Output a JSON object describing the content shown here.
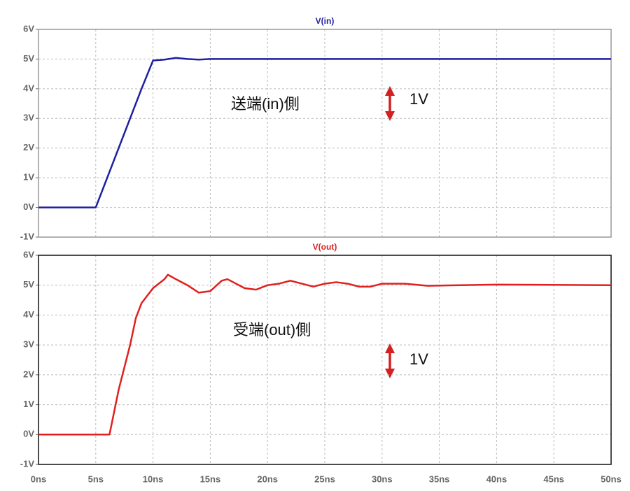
{
  "chart_data": [
    {
      "type": "line",
      "x": [
        0,
        5,
        6,
        7,
        8,
        9,
        10,
        11,
        12,
        13,
        14,
        15,
        20,
        25,
        30,
        40,
        50
      ],
      "series": [
        {
          "name": "V(in)",
          "color": "#1f1fa0",
          "values": [
            0,
            0,
            1.0,
            2.0,
            3.0,
            4.0,
            4.95,
            4.98,
            5.04,
            5.0,
            4.98,
            5.0,
            5.0,
            5.0,
            5.0,
            5.0,
            5.0
          ]
        }
      ],
      "xlim": [
        0,
        50
      ],
      "xticks": [
        0,
        5,
        10,
        15,
        20,
        25,
        30,
        35,
        40,
        45,
        50
      ],
      "ylim": [
        -1,
        6
      ],
      "yticks": [
        {
          "value": -1,
          "label": "-1V"
        },
        {
          "value": 0,
          "label": "0V"
        },
        {
          "value": 1,
          "label": "1V"
        },
        {
          "value": 2,
          "label": "2V"
        },
        {
          "value": 3,
          "label": "3V"
        },
        {
          "value": 4,
          "label": "4V"
        },
        {
          "value": 5,
          "label": "5V"
        },
        {
          "value": 6,
          "label": "6V"
        }
      ],
      "grid": true,
      "annotations": [
        "送端(in)側",
        "1V"
      ]
    },
    {
      "type": "line",
      "x": [
        0,
        6.2,
        7,
        8,
        8.5,
        9,
        10,
        11,
        11.3,
        12,
        13,
        14,
        15,
        16,
        16.5,
        17,
        18,
        19,
        20,
        21,
        22,
        23,
        24,
        25,
        26,
        27,
        28,
        29,
        30,
        32,
        34,
        40,
        50
      ],
      "series": [
        {
          "name": "V(out)",
          "color": "#e0201e",
          "values": [
            0,
            0,
            1.5,
            3.0,
            3.9,
            4.4,
            4.9,
            5.2,
            5.35,
            5.2,
            5.0,
            4.75,
            4.8,
            5.15,
            5.2,
            5.1,
            4.9,
            4.85,
            5.0,
            5.05,
            5.15,
            5.05,
            4.95,
            5.05,
            5.1,
            5.05,
            4.95,
            4.95,
            5.05,
            5.05,
            4.98,
            5.02,
            5.0
          ]
        }
      ],
      "xlim": [
        0,
        50
      ],
      "xticks": [
        {
          "value": 0,
          "label": "0ns"
        },
        {
          "value": 5,
          "label": "5ns"
        },
        {
          "value": 10,
          "label": "10ns"
        },
        {
          "value": 15,
          "label": "15ns"
        },
        {
          "value": 20,
          "label": "20ns"
        },
        {
          "value": 25,
          "label": "25ns"
        },
        {
          "value": 30,
          "label": "30ns"
        },
        {
          "value": 35,
          "label": "35ns"
        },
        {
          "value": 40,
          "label": "40ns"
        },
        {
          "value": 45,
          "label": "45ns"
        },
        {
          "value": 50,
          "label": "50ns"
        }
      ],
      "ylim": [
        -1,
        6
      ],
      "yticks": [
        {
          "value": -1,
          "label": "-1V"
        },
        {
          "value": 0,
          "label": "0V"
        },
        {
          "value": 1,
          "label": "1V"
        },
        {
          "value": 2,
          "label": "2V"
        },
        {
          "value": 3,
          "label": "3V"
        },
        {
          "value": 4,
          "label": "4V"
        },
        {
          "value": 5,
          "label": "5V"
        },
        {
          "value": 6,
          "label": "6V"
        }
      ],
      "grid": true,
      "annotations": [
        "受端(out)側",
        "1V"
      ]
    }
  ]
}
